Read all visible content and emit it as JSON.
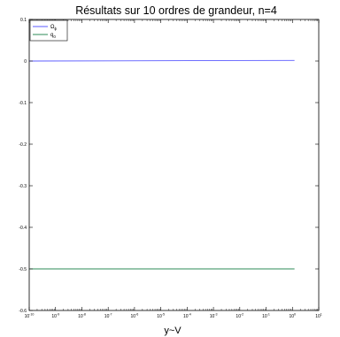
{
  "chart_data": {
    "type": "line",
    "title": "Résultats sur 10 ordres de grandeur, n=4",
    "xlabel": "y~V",
    "ylabel": "",
    "xscale": "log",
    "xlim": [
      1e-10,
      10
    ],
    "ylim": [
      -0.6,
      0.1
    ],
    "xticks": [
      {
        "value": 1e-10,
        "base": "10",
        "exp": "-10"
      },
      {
        "value": 1e-09,
        "base": "10",
        "exp": "-9"
      },
      {
        "value": 1e-08,
        "base": "10",
        "exp": "-8"
      },
      {
        "value": 1e-07,
        "base": "10",
        "exp": "-7"
      },
      {
        "value": 1e-06,
        "base": "10",
        "exp": "-6"
      },
      {
        "value": 1e-05,
        "base": "10",
        "exp": "-5"
      },
      {
        "value": 0.0001,
        "base": "10",
        "exp": "-4"
      },
      {
        "value": 0.001,
        "base": "10",
        "exp": "-3"
      },
      {
        "value": 0.01,
        "base": "10",
        "exp": "-2"
      },
      {
        "value": 0.1,
        "base": "10",
        "exp": "-1"
      },
      {
        "value": 1,
        "base": "10",
        "exp": "0"
      },
      {
        "value": 10,
        "base": "10",
        "exp": "1"
      }
    ],
    "yticks": [
      {
        "value": 0.1,
        "label": "0.1"
      },
      {
        "value": 0,
        "label": "0"
      },
      {
        "value": -0.1,
        "label": "-0.1"
      },
      {
        "value": -0.2,
        "label": "-0.2"
      },
      {
        "value": -0.3,
        "label": "-0.3"
      },
      {
        "value": -0.4,
        "label": "-0.4"
      },
      {
        "value": -0.5,
        "label": "-0.5"
      },
      {
        "value": -0.6,
        "label": "-0.6"
      }
    ],
    "grid": false,
    "legend_position": "top-left",
    "series": [
      {
        "name": "Ω",
        "name_sub": "ϕ",
        "color": "#5b5bff",
        "x": [
          1e-10,
          1.2
        ],
        "y": [
          0,
          0.0015
        ]
      },
      {
        "name": "q",
        "name_sub": "0",
        "color": "#2e8b57",
        "x": [
          1e-10,
          1.2
        ],
        "y": [
          -0.5,
          -0.5
        ]
      }
    ]
  }
}
